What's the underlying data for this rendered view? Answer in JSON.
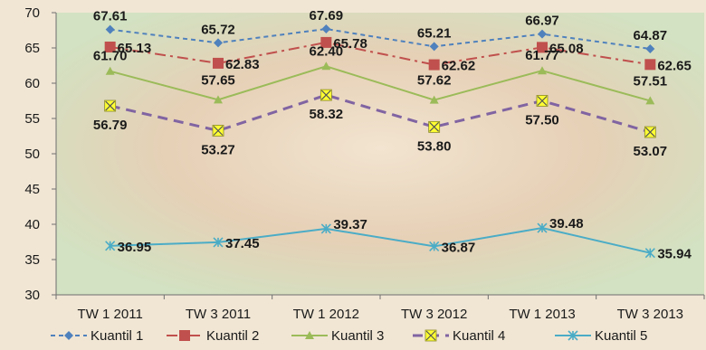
{
  "chart_data": {
    "type": "line",
    "title": "",
    "xlabel": "",
    "ylabel": "",
    "categories": [
      "TW 1 2011",
      "TW 3 2011",
      "TW 1 2012",
      "TW 3 2012",
      "TW 1 2013",
      "TW 3 2013"
    ],
    "ylim": [
      30,
      70
    ],
    "yticks": [
      30,
      35,
      40,
      45,
      50,
      55,
      60,
      65,
      70
    ],
    "grid": false,
    "legend": "bottom",
    "series": [
      {
        "name": "Kuantil 1",
        "values": [
          67.61,
          65.72,
          67.69,
          65.21,
          66.97,
          64.87
        ],
        "color": "#4F81BD",
        "marker": "diamond",
        "dash": "5,4"
      },
      {
        "name": "Kuantil 2",
        "values": [
          65.13,
          62.83,
          65.78,
          62.62,
          65.08,
          62.65
        ],
        "color": "#C0504D",
        "marker": "square",
        "dash": "12,5,3,5"
      },
      {
        "name": "Kuantil 3",
        "values": [
          61.7,
          57.65,
          62.4,
          57.62,
          61.77,
          57.51
        ],
        "color": "#9BBB59",
        "marker": "triangle",
        "dash": ""
      },
      {
        "name": "Kuantil 4",
        "values": [
          56.79,
          53.27,
          58.32,
          53.8,
          57.5,
          53.07
        ],
        "color": "#8064A2",
        "marker": "xbox",
        "dash": "11,7"
      },
      {
        "name": "Kuantil 5",
        "values": [
          36.95,
          37.45,
          39.37,
          36.87,
          39.48,
          35.94
        ],
        "color": "#4BACC6",
        "marker": "star",
        "dash": ""
      }
    ]
  }
}
